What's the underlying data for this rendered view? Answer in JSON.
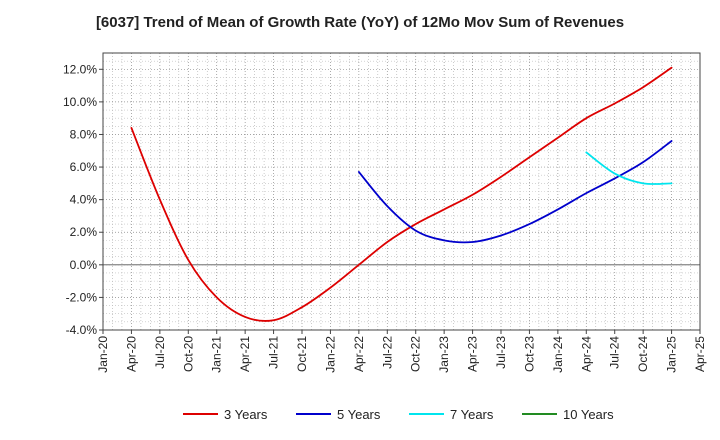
{
  "chart_data": {
    "type": "line",
    "title": "[6037]  Trend of Mean of Growth Rate (YoY) of 12Mo Mov Sum of Revenues",
    "xlabel": "",
    "ylabel": "",
    "x_ticks": [
      "Jan-20",
      "Apr-20",
      "Jul-20",
      "Oct-20",
      "Jan-21",
      "Apr-21",
      "Jul-21",
      "Oct-21",
      "Jan-22",
      "Apr-22",
      "Jul-22",
      "Oct-22",
      "Jan-23",
      "Apr-23",
      "Jul-23",
      "Oct-23",
      "Jan-24",
      "Apr-24",
      "Jul-24",
      "Oct-24",
      "Jan-25",
      "Apr-25"
    ],
    "ylim": [
      -4.0,
      13.0
    ],
    "y_ticks": [
      -4.0,
      -2.0,
      0.0,
      2.0,
      4.0,
      6.0,
      8.0,
      10.0,
      12.0
    ],
    "y_tick_labels": [
      "-4.0%",
      "-2.0%",
      "0.0%",
      "2.0%",
      "4.0%",
      "6.0%",
      "8.0%",
      "10.0%",
      "12.0%"
    ],
    "grid": true,
    "legend_position": "bottom",
    "series": [
      {
        "name": "3 Years",
        "color": "#dd0000",
        "points": [
          [
            "Apr-20",
            8.4
          ],
          [
            "Jul-20",
            4.0
          ],
          [
            "Oct-20",
            0.3
          ],
          [
            "Jan-21",
            -2.0
          ],
          [
            "Apr-21",
            -3.2
          ],
          [
            "Jul-21",
            -3.4
          ],
          [
            "Oct-21",
            -2.6
          ],
          [
            "Jan-22",
            -1.4
          ],
          [
            "Apr-22",
            0.0
          ],
          [
            "Jul-22",
            1.4
          ],
          [
            "Oct-22",
            2.5
          ],
          [
            "Jan-23",
            3.4
          ],
          [
            "Apr-23",
            4.3
          ],
          [
            "Jul-23",
            5.4
          ],
          [
            "Oct-23",
            6.6
          ],
          [
            "Jan-24",
            7.8
          ],
          [
            "Apr-24",
            9.0
          ],
          [
            "Jul-24",
            9.9
          ],
          [
            "Oct-24",
            10.9
          ],
          [
            "Jan-25",
            12.1
          ]
        ]
      },
      {
        "name": "5 Years",
        "color": "#0000cc",
        "points": [
          [
            "Apr-22",
            5.7
          ],
          [
            "Jul-22",
            3.6
          ],
          [
            "Oct-22",
            2.1
          ],
          [
            "Jan-23",
            1.5
          ],
          [
            "Apr-23",
            1.4
          ],
          [
            "Jul-23",
            1.8
          ],
          [
            "Oct-23",
            2.5
          ],
          [
            "Jan-24",
            3.4
          ],
          [
            "Apr-24",
            4.4
          ],
          [
            "Jul-24",
            5.3
          ],
          [
            "Oct-24",
            6.3
          ],
          [
            "Jan-25",
            7.6
          ]
        ]
      },
      {
        "name": "7 Years",
        "color": "#00e5ee",
        "points": [
          [
            "Apr-24",
            6.9
          ],
          [
            "Jul-24",
            5.6
          ],
          [
            "Oct-24",
            5.0
          ],
          [
            "Jan-25",
            5.0
          ]
        ]
      },
      {
        "name": "10 Years",
        "color": "#228b22",
        "points": []
      }
    ]
  }
}
